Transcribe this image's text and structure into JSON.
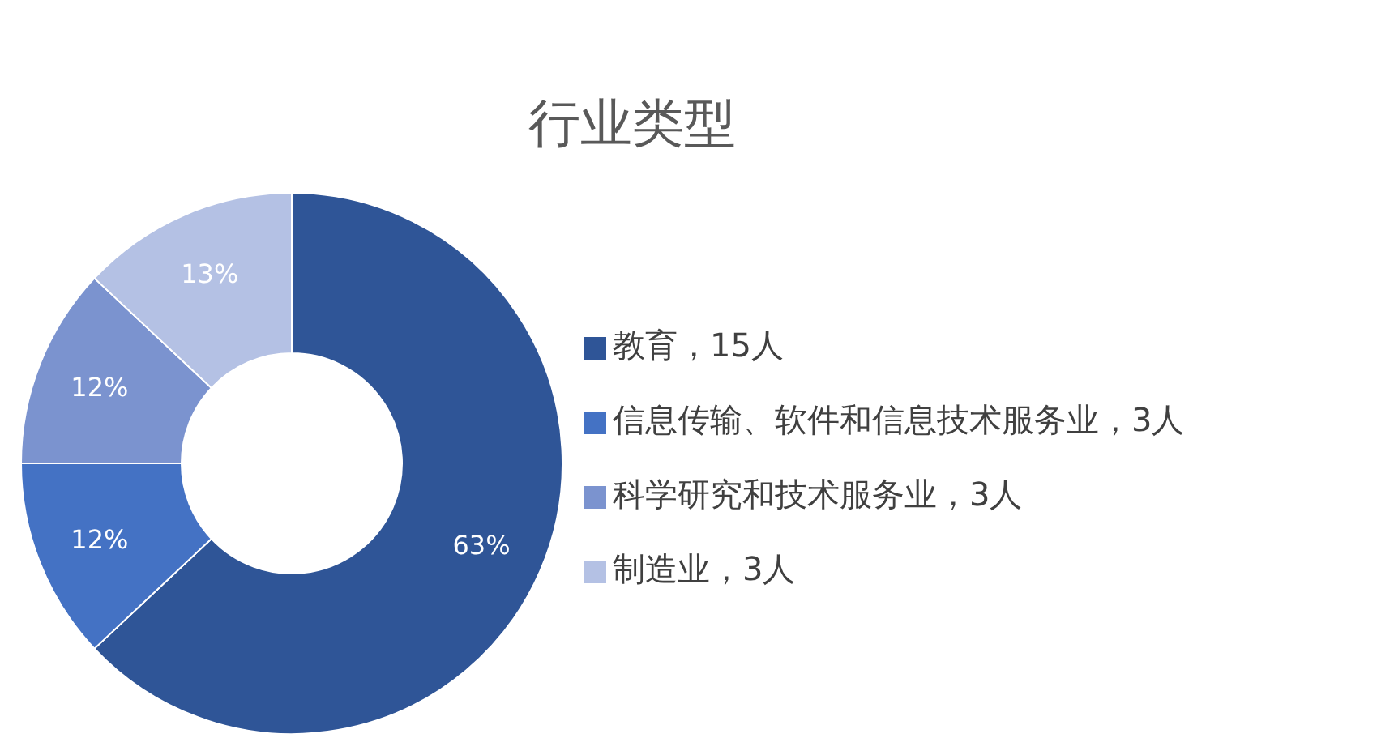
{
  "chart_data": {
    "type": "donut",
    "title": "行业类型",
    "categories": [
      "教育，15人",
      "信息传输、软件和信息技术服务业，3人",
      "科学研究和技术服务业，3人",
      "制造业，3人"
    ],
    "values": [
      63,
      12,
      12,
      13
    ],
    "value_labels": [
      "63%",
      "12%",
      "12%",
      "13%"
    ],
    "colors": [
      "#2f5597",
      "#4472c4",
      "#7b93cf",
      "#b4c1e4"
    ],
    "legend": "right"
  }
}
